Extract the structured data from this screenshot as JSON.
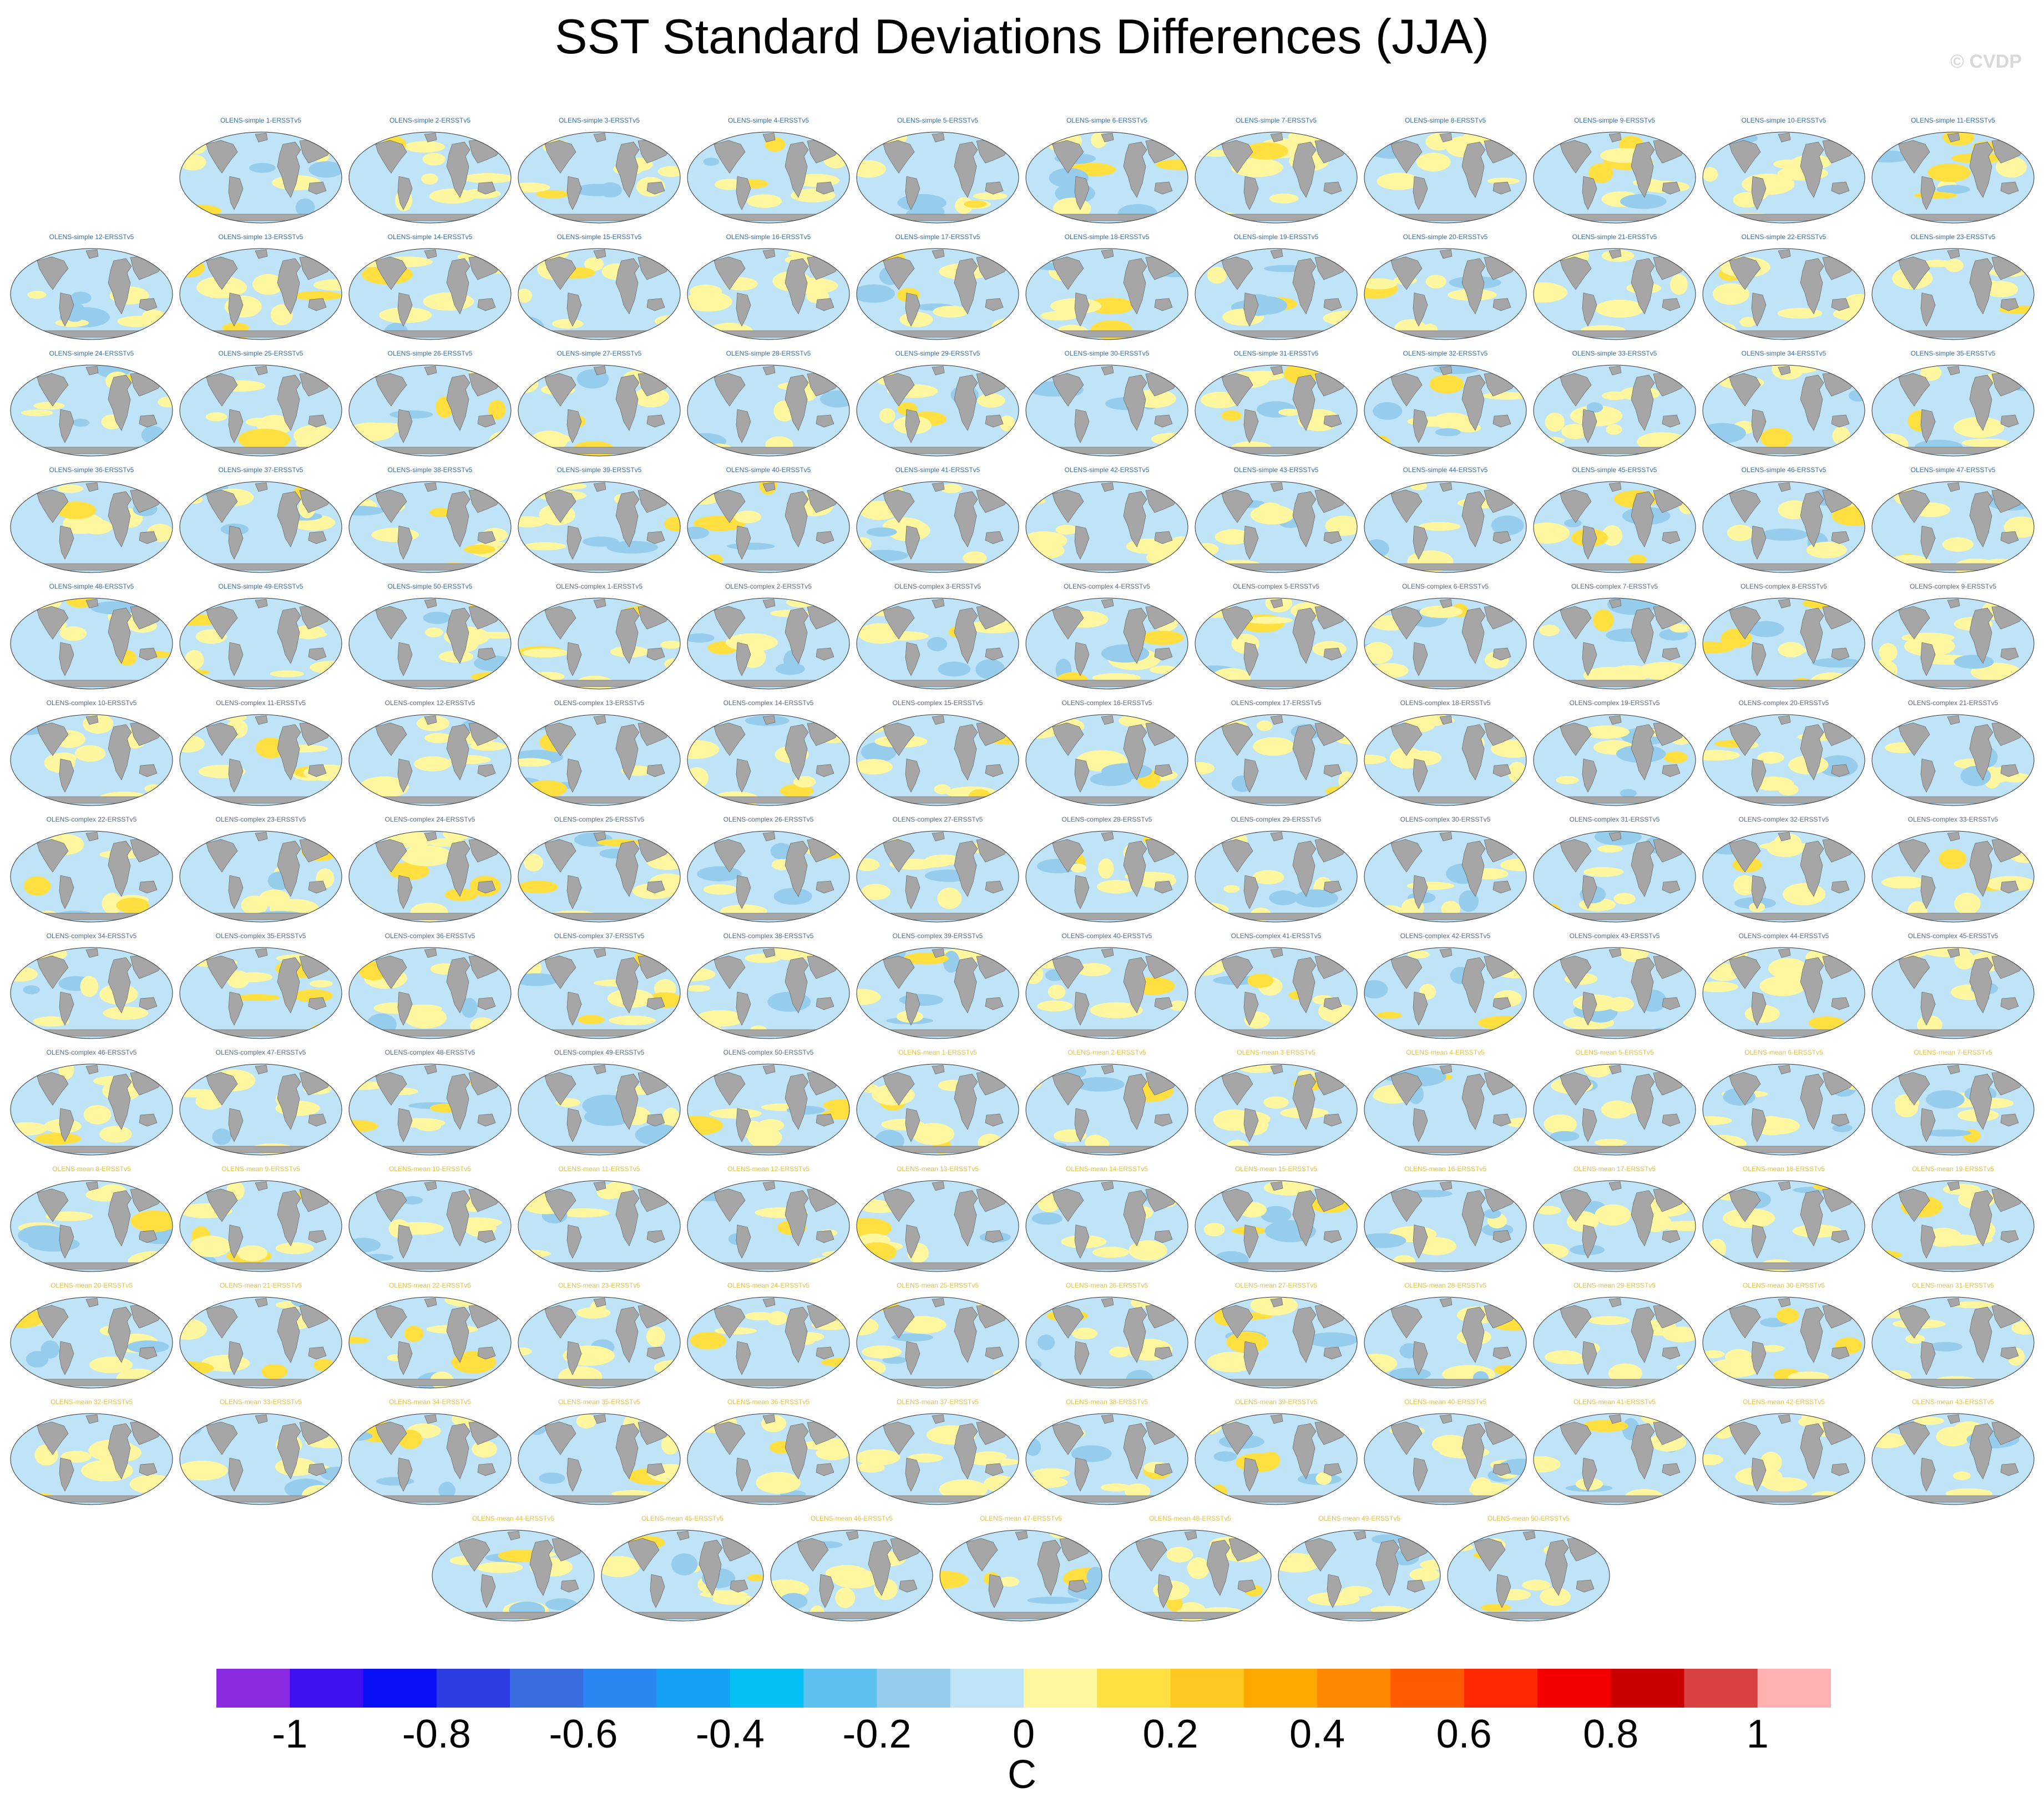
{
  "chart_data": {
    "type": "heatmap",
    "title": "SST Standard Deviations Differences (JJA)",
    "panel_layout": "grid of global maps, 11 panels in first row, 12 per row after, 7 in last row",
    "panel_titles": [
      "OLENS-simple 1-ERSSTv5",
      "OLENS-simple 2-ERSSTv5",
      "OLENS-simple 3-ERSSTv5",
      "OLENS-simple 4-ERSSTv5",
      "OLENS-simple 5-ERSSTv5",
      "OLENS-simple 6-ERSSTv5",
      "OLENS-simple 7-ERSSTv5",
      "OLENS-simple 8-ERSSTv5",
      "OLENS-simple 9-ERSSTv5",
      "OLENS-simple 10-ERSSTv5",
      "OLENS-simple 11-ERSSTv5",
      "OLENS-simple 12-ERSSTv5",
      "OLENS-simple 13-ERSSTv5",
      "OLENS-simple 14-ERSSTv5",
      "OLENS-simple 15-ERSSTv5",
      "OLENS-simple 16-ERSSTv5",
      "OLENS-simple 17-ERSSTv5",
      "OLENS-simple 18-ERSSTv5",
      "OLENS-simple 19-ERSSTv5",
      "OLENS-simple 20-ERSSTv5",
      "OLENS-simple 21-ERSSTv5",
      "OLENS-simple 22-ERSSTv5",
      "OLENS-simple 23-ERSSTv5",
      "OLENS-simple 24-ERSSTv5",
      "OLENS-simple 25-ERSSTv5",
      "OLENS-simple 26-ERSSTv5",
      "OLENS-simple 27-ERSSTv5",
      "OLENS-simple 28-ERSSTv5",
      "OLENS-simple 29-ERSSTv5",
      "OLENS-simple 30-ERSSTv5",
      "OLENS-simple 31-ERSSTv5",
      "OLENS-simple 32-ERSSTv5",
      "OLENS-simple 33-ERSSTv5",
      "OLENS-simple 34-ERSSTv5",
      "OLENS-simple 35-ERSSTv5",
      "OLENS-simple 36-ERSSTv5",
      "OLENS-simple 37-ERSSTv5",
      "OLENS-simple 38-ERSSTv5",
      "OLENS-simple 39-ERSSTv5",
      "OLENS-simple 40-ERSSTv5",
      "OLENS-simple 41-ERSSTv5",
      "OLENS-simple 42-ERSSTv5",
      "OLENS-simple 43-ERSSTv5",
      "OLENS-simple 44-ERSSTv5",
      "OLENS-simple 45-ERSSTv5",
      "OLENS-simple 46-ERSSTv5",
      "OLENS-simple 47-ERSSTv5",
      "OLENS-simple 48-ERSSTv5",
      "OLENS-simple 49-ERSSTv5",
      "OLENS-simple 50-ERSSTv5",
      "OLENS-complex 1-ERSSTv5",
      "OLENS-complex 2-ERSSTv5",
      "OLENS-complex 3-ERSSTv5",
      "OLENS-complex 4-ERSSTv5",
      "OLENS-complex 5-ERSSTv5",
      "OLENS-complex 6-ERSSTv5",
      "OLENS-complex 7-ERSSTv5",
      "OLENS-complex 8-ERSSTv5",
      "OLENS-complex 9-ERSSTv5",
      "OLENS-complex 10-ERSSTv5",
      "OLENS-complex 11-ERSSTv5",
      "OLENS-complex 12-ERSSTv5",
      "OLENS-complex 13-ERSSTv5",
      "OLENS-complex 14-ERSSTv5",
      "OLENS-complex 15-ERSSTv5",
      "OLENS-complex 16-ERSSTv5",
      "OLENS-complex 17-ERSSTv5",
      "OLENS-complex 18-ERSSTv5",
      "OLENS-complex 19-ERSSTv5",
      "OLENS-complex 20-ERSSTv5",
      "OLENS-complex 21-ERSSTv5",
      "OLENS-complex 22-ERSSTv5",
      "OLENS-complex 23-ERSSTv5",
      "OLENS-complex 24-ERSSTv5",
      "OLENS-complex 25-ERSSTv5",
      "OLENS-complex 26-ERSSTv5",
      "OLENS-complex 27-ERSSTv5",
      "OLENS-complex 28-ERSSTv5",
      "OLENS-complex 29-ERSSTv5",
      "OLENS-complex 30-ERSSTv5",
      "OLENS-complex 31-ERSSTv5",
      "OLENS-complex 32-ERSSTv5",
      "OLENS-complex 33-ERSSTv5",
      "OLENS-complex 34-ERSSTv5",
      "OLENS-complex 35-ERSSTv5",
      "OLENS-complex 36-ERSSTv5",
      "OLENS-complex 37-ERSSTv5",
      "OLENS-complex 38-ERSSTv5",
      "OLENS-complex 39-ERSSTv5",
      "OLENS-complex 40-ERSSTv5",
      "OLENS-complex 41-ERSSTv5",
      "OLENS-complex 42-ERSSTv5",
      "OLENS-complex 43-ERSSTv5",
      "OLENS-complex 44-ERSSTv5",
      "OLENS-complex 45-ERSSTv5",
      "OLENS-complex 46-ERSSTv5",
      "OLENS-complex 47-ERSSTv5",
      "OLENS-complex 48-ERSSTv5",
      "OLENS-complex 49-ERSSTv5",
      "OLENS-complex 50-ERSSTv5",
      "OLENS-mean 1-ERSSTv5",
      "OLENS-mean 2-ERSSTv5",
      "OLENS-mean 3-ERSSTv5",
      "OLENS-mean 4-ERSSTv5",
      "OLENS-mean 5-ERSSTv5",
      "OLENS-mean 6-ERSSTv5",
      "OLENS-mean 7-ERSSTv5",
      "OLENS-mean 8-ERSSTv5",
      "OLENS-mean 9-ERSSTv5",
      "OLENS-mean 10-ERSSTv5",
      "OLENS-mean 11-ERSSTv5",
      "OLENS-mean 12-ERSSTv5",
      "OLENS-mean 13-ERSSTv5",
      "OLENS-mean 14-ERSSTv5",
      "OLENS-mean 15-ERSSTv5",
      "OLENS-mean 16-ERSSTv5",
      "OLENS-mean 17-ERSSTv5",
      "OLENS-mean 18-ERSSTv5",
      "OLENS-mean 19-ERSSTv5",
      "OLENS-mean 20-ERSSTv5",
      "OLENS-mean 21-ERSSTv5",
      "OLENS-mean 22-ERSSTv5",
      "OLENS-mean 23-ERSSTv5",
      "OLENS-mean 24-ERSSTv5",
      "OLENS-mean 25-ERSSTv5",
      "OLENS-mean 26-ERSSTv5",
      "OLENS-mean 27-ERSSTv5",
      "OLENS-mean 28-ERSSTv5",
      "OLENS-mean 29-ERSSTv5",
      "OLENS-mean 30-ERSSTv5",
      "OLENS-mean 31-ERSSTv5",
      "OLENS-mean 32-ERSSTv5",
      "OLENS-mean 33-ERSSTv5",
      "OLENS-mean 34-ERSSTv5",
      "OLENS-mean 35-ERSSTv5",
      "OLENS-mean 36-ERSSTv5",
      "OLENS-mean 37-ERSSTv5",
      "OLENS-mean 38-ERSSTv5",
      "OLENS-mean 39-ERSSTv5",
      "OLENS-mean 40-ERSSTv5",
      "OLENS-mean 41-ERSSTv5",
      "OLENS-mean 42-ERSSTv5",
      "OLENS-mean 43-ERSSTv5",
      "OLENS-mean 44-ERSSTv5",
      "OLENS-mean 45-ERSSTv5",
      "OLENS-mean 46-ERSSTv5",
      "OLENS-mean 47-ERSSTv5",
      "OLENS-mean 48-ERSSTv5",
      "OLENS-mean 49-ERSSTv5",
      "OLENS-mean 50-ERSSTv5"
    ],
    "colorbar": {
      "levels": [
        -1.1,
        -1,
        -0.9,
        -0.8,
        -0.7,
        -0.6,
        -0.5,
        -0.4,
        -0.3,
        -0.2,
        -0.1,
        0,
        0.1,
        0.2,
        0.3,
        0.4,
        0.5,
        0.6,
        0.7,
        0.8,
        0.9,
        1,
        1.1
      ],
      "colors": [
        "#8a2be2",
        "#3e0fef",
        "#0a10f5",
        "#2b3de0",
        "#3a6de0",
        "#2a86f0",
        "#14a0f5",
        "#05c0f5",
        "#5cc0f0",
        "#96cdec",
        "#bfe3f7",
        "#fff7a0",
        "#ffe040",
        "#ffc820",
        "#ffa800",
        "#ff8800",
        "#ff5a00",
        "#ff2800",
        "#f20000",
        "#c80000",
        "#d94040",
        "#ffb0b0"
      ],
      "tick_labels": [
        "-1",
        "-0.8",
        "-0.6",
        "-0.4",
        "-0.2",
        "0",
        "0.2",
        "0.4",
        "0.6",
        "0.8",
        "1"
      ],
      "tick_values": [
        -1,
        -0.8,
        -0.6,
        -0.4,
        -0.2,
        0,
        0.2,
        0.4,
        0.6,
        0.8,
        1
      ],
      "units": "C"
    },
    "map_colors": {
      "land": "#a6a6a6",
      "ocean_neg": "#bfe3f7",
      "ocean_pos": "#fff7a0",
      "ocean_pos2": "#ffe040",
      "ocean_neg2": "#96cdec"
    }
  },
  "watermark": "© CVDP"
}
